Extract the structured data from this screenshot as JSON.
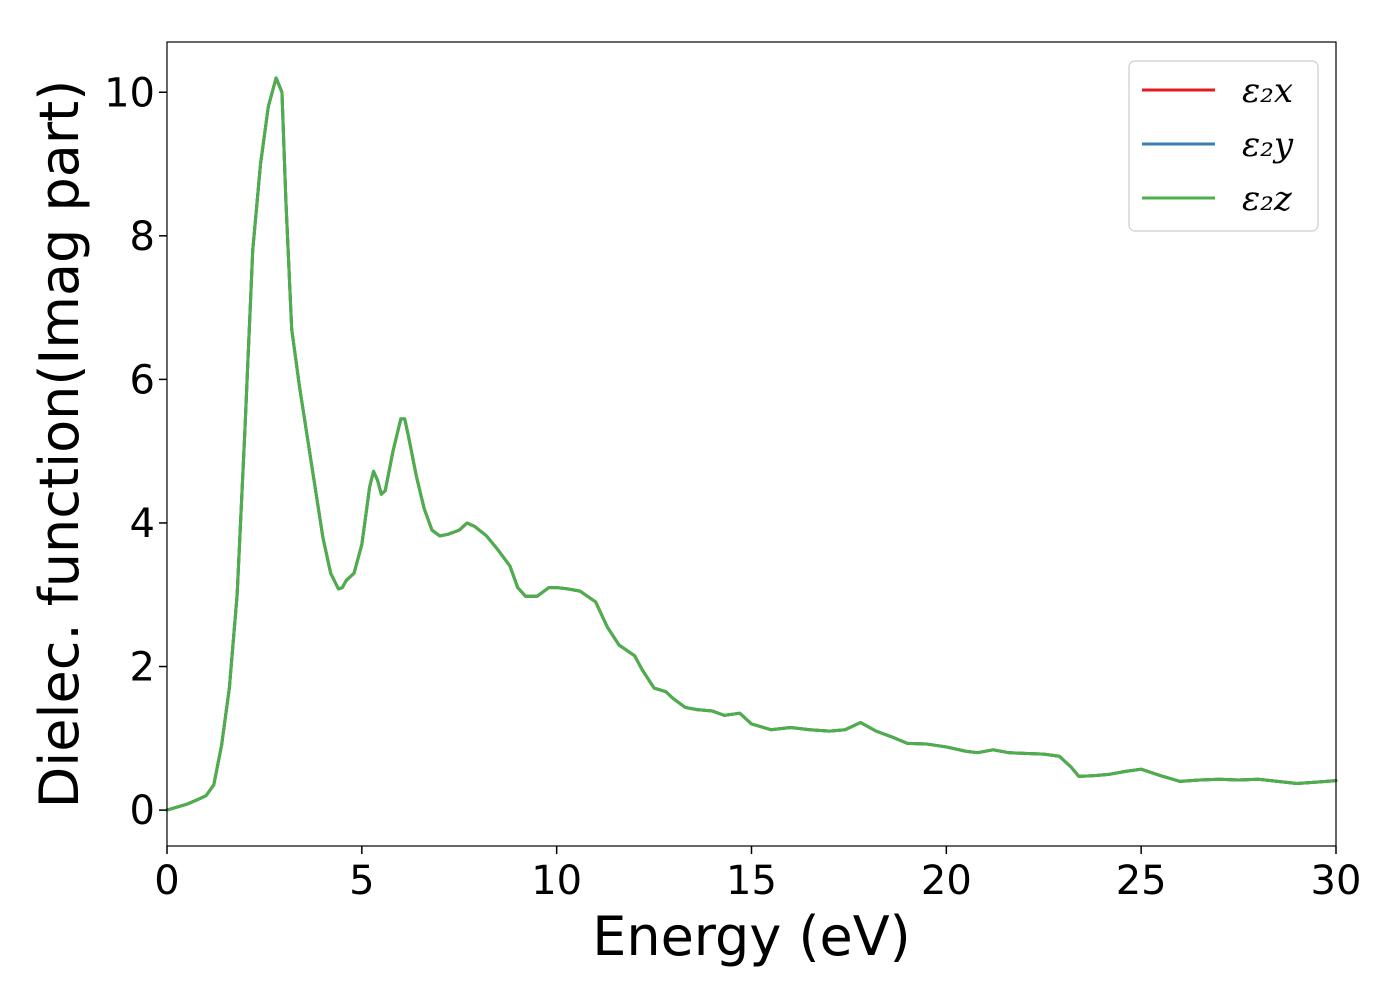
{
  "chart_data": {
    "type": "line",
    "title": "",
    "xlabel": "Energy (eV)",
    "ylabel": "Dielec. function(Imag part)",
    "xlim": [
      0,
      30
    ],
    "ylim": [
      -0.5,
      10.7
    ],
    "x_ticks": [
      0,
      5,
      10,
      15,
      20,
      25,
      30
    ],
    "y_ticks": [
      0,
      2,
      4,
      6,
      8,
      10
    ],
    "grid": false,
    "legend_position": "top-right",
    "series": [
      {
        "name": "ε₂x",
        "color": "#e41a1c",
        "x": [
          0,
          0.5,
          0.8,
          1.0,
          1.2,
          1.4,
          1.6,
          1.8,
          2.0,
          2.2,
          2.4,
          2.6,
          2.8,
          2.95,
          3.05,
          3.2,
          3.4,
          3.6,
          3.8,
          4.0,
          4.2,
          4.4,
          4.5,
          4.6,
          4.8,
          5.0,
          5.2,
          5.3,
          5.4,
          5.5,
          5.6,
          5.8,
          6.0,
          6.1,
          6.2,
          6.4,
          6.6,
          6.8,
          7.0,
          7.2,
          7.5,
          7.7,
          7.9,
          8.2,
          8.5,
          8.8,
          9.0,
          9.2,
          9.5,
          9.8,
          10.0,
          10.3,
          10.6,
          11.0,
          11.3,
          11.6,
          12.0,
          12.2,
          12.5,
          12.8,
          13.0,
          13.3,
          13.6,
          14.0,
          14.3,
          14.7,
          15.0,
          15.5,
          16.0,
          16.5,
          17.0,
          17.4,
          17.8,
          18.2,
          18.6,
          19.0,
          19.5,
          20.0,
          20.5,
          20.8,
          21.2,
          21.6,
          22.0,
          22.5,
          22.9,
          23.2,
          23.4,
          23.8,
          24.2,
          24.6,
          25.0,
          25.5,
          26.0,
          26.5,
          27.0,
          27.5,
          28.0,
          28.5,
          29.0,
          29.5,
          30.0
        ],
        "y": [
          0.0,
          0.08,
          0.15,
          0.2,
          0.35,
          0.9,
          1.7,
          3.0,
          5.3,
          7.8,
          9.0,
          9.8,
          10.2,
          10.0,
          8.5,
          6.7,
          5.9,
          5.2,
          4.5,
          3.8,
          3.3,
          3.08,
          3.1,
          3.2,
          3.3,
          3.7,
          4.5,
          4.72,
          4.6,
          4.4,
          4.45,
          5.0,
          5.45,
          5.45,
          5.2,
          4.65,
          4.2,
          3.9,
          3.82,
          3.84,
          3.9,
          4.0,
          3.95,
          3.82,
          3.62,
          3.4,
          3.1,
          2.98,
          2.98,
          3.1,
          3.1,
          3.08,
          3.05,
          2.9,
          2.55,
          2.3,
          2.15,
          1.95,
          1.7,
          1.65,
          1.55,
          1.43,
          1.4,
          1.38,
          1.32,
          1.35,
          1.2,
          1.12,
          1.15,
          1.12,
          1.1,
          1.12,
          1.22,
          1.1,
          1.02,
          0.93,
          0.92,
          0.88,
          0.82,
          0.8,
          0.84,
          0.8,
          0.79,
          0.78,
          0.75,
          0.6,
          0.47,
          0.48,
          0.5,
          0.54,
          0.57,
          0.48,
          0.4,
          0.42,
          0.43,
          0.42,
          0.43,
          0.4,
          0.37,
          0.39,
          0.41
        ]
      },
      {
        "name": "ε₂y",
        "color": "#377eb8",
        "x": [
          0,
          0.5,
          0.8,
          1.0,
          1.2,
          1.4,
          1.6,
          1.8,
          2.0,
          2.2,
          2.4,
          2.6,
          2.8,
          2.95,
          3.05,
          3.2,
          3.4,
          3.6,
          3.8,
          4.0,
          4.2,
          4.4,
          4.5,
          4.6,
          4.8,
          5.0,
          5.2,
          5.3,
          5.4,
          5.5,
          5.6,
          5.8,
          6.0,
          6.1,
          6.2,
          6.4,
          6.6,
          6.8,
          7.0,
          7.2,
          7.5,
          7.7,
          7.9,
          8.2,
          8.5,
          8.8,
          9.0,
          9.2,
          9.5,
          9.8,
          10.0,
          10.3,
          10.6,
          11.0,
          11.3,
          11.6,
          12.0,
          12.2,
          12.5,
          12.8,
          13.0,
          13.3,
          13.6,
          14.0,
          14.3,
          14.7,
          15.0,
          15.5,
          16.0,
          16.5,
          17.0,
          17.4,
          17.8,
          18.2,
          18.6,
          19.0,
          19.5,
          20.0,
          20.5,
          20.8,
          21.2,
          21.6,
          22.0,
          22.5,
          22.9,
          23.2,
          23.4,
          23.8,
          24.2,
          24.6,
          25.0,
          25.5,
          26.0,
          26.5,
          27.0,
          27.5,
          28.0,
          28.5,
          29.0,
          29.5,
          30.0
        ],
        "y": [
          0.0,
          0.08,
          0.15,
          0.2,
          0.35,
          0.9,
          1.7,
          3.0,
          5.3,
          7.8,
          9.0,
          9.8,
          10.2,
          10.0,
          8.5,
          6.7,
          5.9,
          5.2,
          4.5,
          3.8,
          3.3,
          3.08,
          3.1,
          3.2,
          3.3,
          3.7,
          4.5,
          4.72,
          4.6,
          4.4,
          4.45,
          5.0,
          5.45,
          5.45,
          5.2,
          4.65,
          4.2,
          3.9,
          3.82,
          3.84,
          3.9,
          4.0,
          3.95,
          3.82,
          3.62,
          3.4,
          3.1,
          2.98,
          2.98,
          3.1,
          3.1,
          3.08,
          3.05,
          2.9,
          2.55,
          2.3,
          2.15,
          1.95,
          1.7,
          1.65,
          1.55,
          1.43,
          1.4,
          1.38,
          1.32,
          1.35,
          1.2,
          1.12,
          1.15,
          1.12,
          1.1,
          1.12,
          1.22,
          1.1,
          1.02,
          0.93,
          0.92,
          0.88,
          0.82,
          0.8,
          0.84,
          0.8,
          0.79,
          0.78,
          0.75,
          0.6,
          0.47,
          0.48,
          0.5,
          0.54,
          0.57,
          0.48,
          0.4,
          0.42,
          0.43,
          0.42,
          0.43,
          0.4,
          0.37,
          0.39,
          0.41
        ]
      },
      {
        "name": "ε₂z",
        "color": "#4daf4a",
        "x": [
          0,
          0.5,
          0.8,
          1.0,
          1.2,
          1.4,
          1.6,
          1.8,
          2.0,
          2.2,
          2.4,
          2.6,
          2.8,
          2.95,
          3.05,
          3.2,
          3.4,
          3.6,
          3.8,
          4.0,
          4.2,
          4.4,
          4.5,
          4.6,
          4.8,
          5.0,
          5.2,
          5.3,
          5.4,
          5.5,
          5.6,
          5.8,
          6.0,
          6.1,
          6.2,
          6.4,
          6.6,
          6.8,
          7.0,
          7.2,
          7.5,
          7.7,
          7.9,
          8.2,
          8.5,
          8.8,
          9.0,
          9.2,
          9.5,
          9.8,
          10.0,
          10.3,
          10.6,
          11.0,
          11.3,
          11.6,
          12.0,
          12.2,
          12.5,
          12.8,
          13.0,
          13.3,
          13.6,
          14.0,
          14.3,
          14.7,
          15.0,
          15.5,
          16.0,
          16.5,
          17.0,
          17.4,
          17.8,
          18.2,
          18.6,
          19.0,
          19.5,
          20.0,
          20.5,
          20.8,
          21.2,
          21.6,
          22.0,
          22.5,
          22.9,
          23.2,
          23.4,
          23.8,
          24.2,
          24.6,
          25.0,
          25.5,
          26.0,
          26.5,
          27.0,
          27.5,
          28.0,
          28.5,
          29.0,
          29.5,
          30.0
        ],
        "y": [
          0.0,
          0.08,
          0.15,
          0.2,
          0.35,
          0.9,
          1.7,
          3.0,
          5.3,
          7.8,
          9.0,
          9.8,
          10.2,
          10.0,
          8.5,
          6.7,
          5.9,
          5.2,
          4.5,
          3.8,
          3.3,
          3.08,
          3.1,
          3.2,
          3.3,
          3.7,
          4.5,
          4.72,
          4.6,
          4.4,
          4.45,
          5.0,
          5.45,
          5.45,
          5.2,
          4.65,
          4.2,
          3.9,
          3.82,
          3.84,
          3.9,
          4.0,
          3.95,
          3.82,
          3.62,
          3.4,
          3.1,
          2.98,
          2.98,
          3.1,
          3.1,
          3.08,
          3.05,
          2.9,
          2.55,
          2.3,
          2.15,
          1.95,
          1.7,
          1.65,
          1.55,
          1.43,
          1.4,
          1.38,
          1.32,
          1.35,
          1.2,
          1.12,
          1.15,
          1.12,
          1.1,
          1.12,
          1.22,
          1.1,
          1.02,
          0.93,
          0.92,
          0.88,
          0.82,
          0.8,
          0.84,
          0.8,
          0.79,
          0.78,
          0.75,
          0.6,
          0.47,
          0.48,
          0.5,
          0.54,
          0.57,
          0.48,
          0.4,
          0.42,
          0.43,
          0.42,
          0.43,
          0.4,
          0.37,
          0.39,
          0.41
        ]
      }
    ]
  }
}
